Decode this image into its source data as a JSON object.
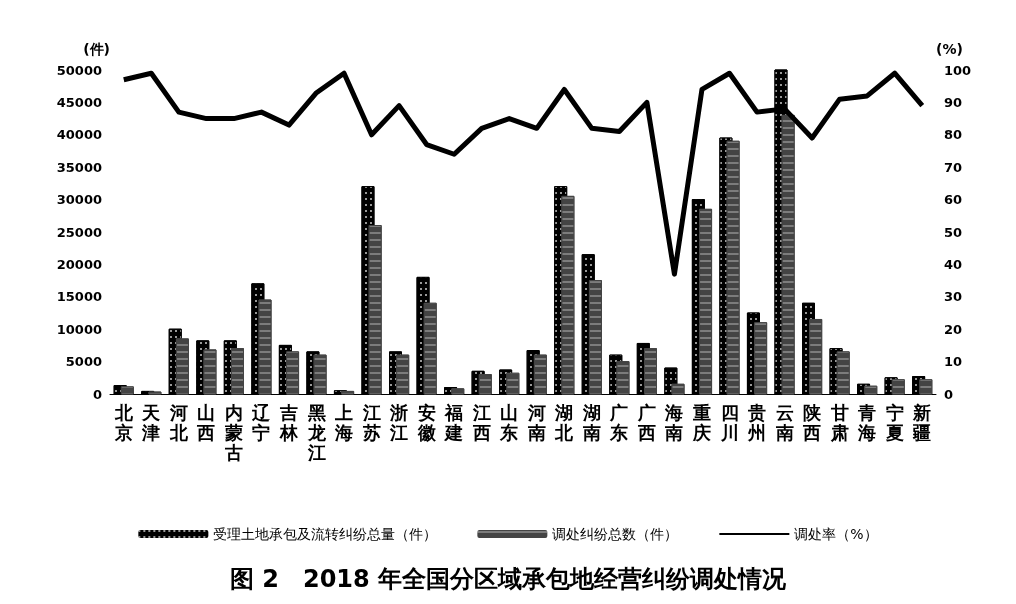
{
  "chart_data": {
    "type": "bar",
    "title": "图 2　2018 年全国分区域承包地经营纠纷调处情况",
    "ylabel": "(件)",
    "y2label": "(%)",
    "categories": [
      "北京",
      "天津",
      "河北",
      "山西",
      "内蒙古",
      "辽宁",
      "吉林",
      "黑龙江",
      "上海",
      "江苏",
      "浙江",
      "安徽",
      "福建",
      "江西",
      "山东",
      "河南",
      "湖北",
      "湖南",
      "广东",
      "广西",
      "海南",
      "重庆",
      "四川",
      "贵州",
      "云南",
      "陕西",
      "甘肃",
      "青海",
      "宁夏",
      "新疆"
    ],
    "series": [
      {
        "name": "受理土地承包及流转纠纷总量（件）",
        "color": "#000000",
        "values": [
          1300,
          400,
          10000,
          8200,
          8200,
          17000,
          7500,
          6500,
          500,
          32000,
          6500,
          18000,
          1000,
          3500,
          3700,
          6700,
          32000,
          21500,
          6000,
          7800,
          4000,
          30000,
          39500,
          12500,
          50000,
          14000,
          7000,
          1500,
          2500,
          2700
        ]
      },
      {
        "name": "调处纠纷总数（件）",
        "color": "#444444",
        "values": [
          1100,
          300,
          8500,
          6800,
          7000,
          14500,
          6500,
          6000,
          400,
          26000,
          6000,
          14000,
          800,
          3000,
          3200,
          6000,
          30500,
          17500,
          5000,
          7000,
          1500,
          28500,
          39000,
          11000,
          43000,
          11500,
          6500,
          1200,
          2200,
          2200
        ]
      },
      {
        "name": "调处率（%）",
        "type": "line",
        "axis": "y2",
        "color": "#000000",
        "values": [
          97,
          99,
          87,
          85,
          85,
          87,
          83,
          93,
          99,
          80,
          89,
          77,
          74,
          82,
          85,
          82,
          94,
          82,
          81,
          90,
          37,
          94,
          99,
          87,
          88,
          79,
          91,
          92,
          99,
          89
        ]
      }
    ],
    "ylim": [
      0,
      50000
    ],
    "yticks": [
      0,
      5000,
      10000,
      15000,
      20000,
      25000,
      30000,
      35000,
      40000,
      45000,
      50000
    ],
    "y2lim": [
      0,
      100
    ],
    "y2ticks": [
      0,
      10,
      20,
      30,
      40,
      50,
      60,
      70,
      80,
      90,
      100
    ],
    "grid": false,
    "legend": "bottom",
    "marker": "none"
  }
}
